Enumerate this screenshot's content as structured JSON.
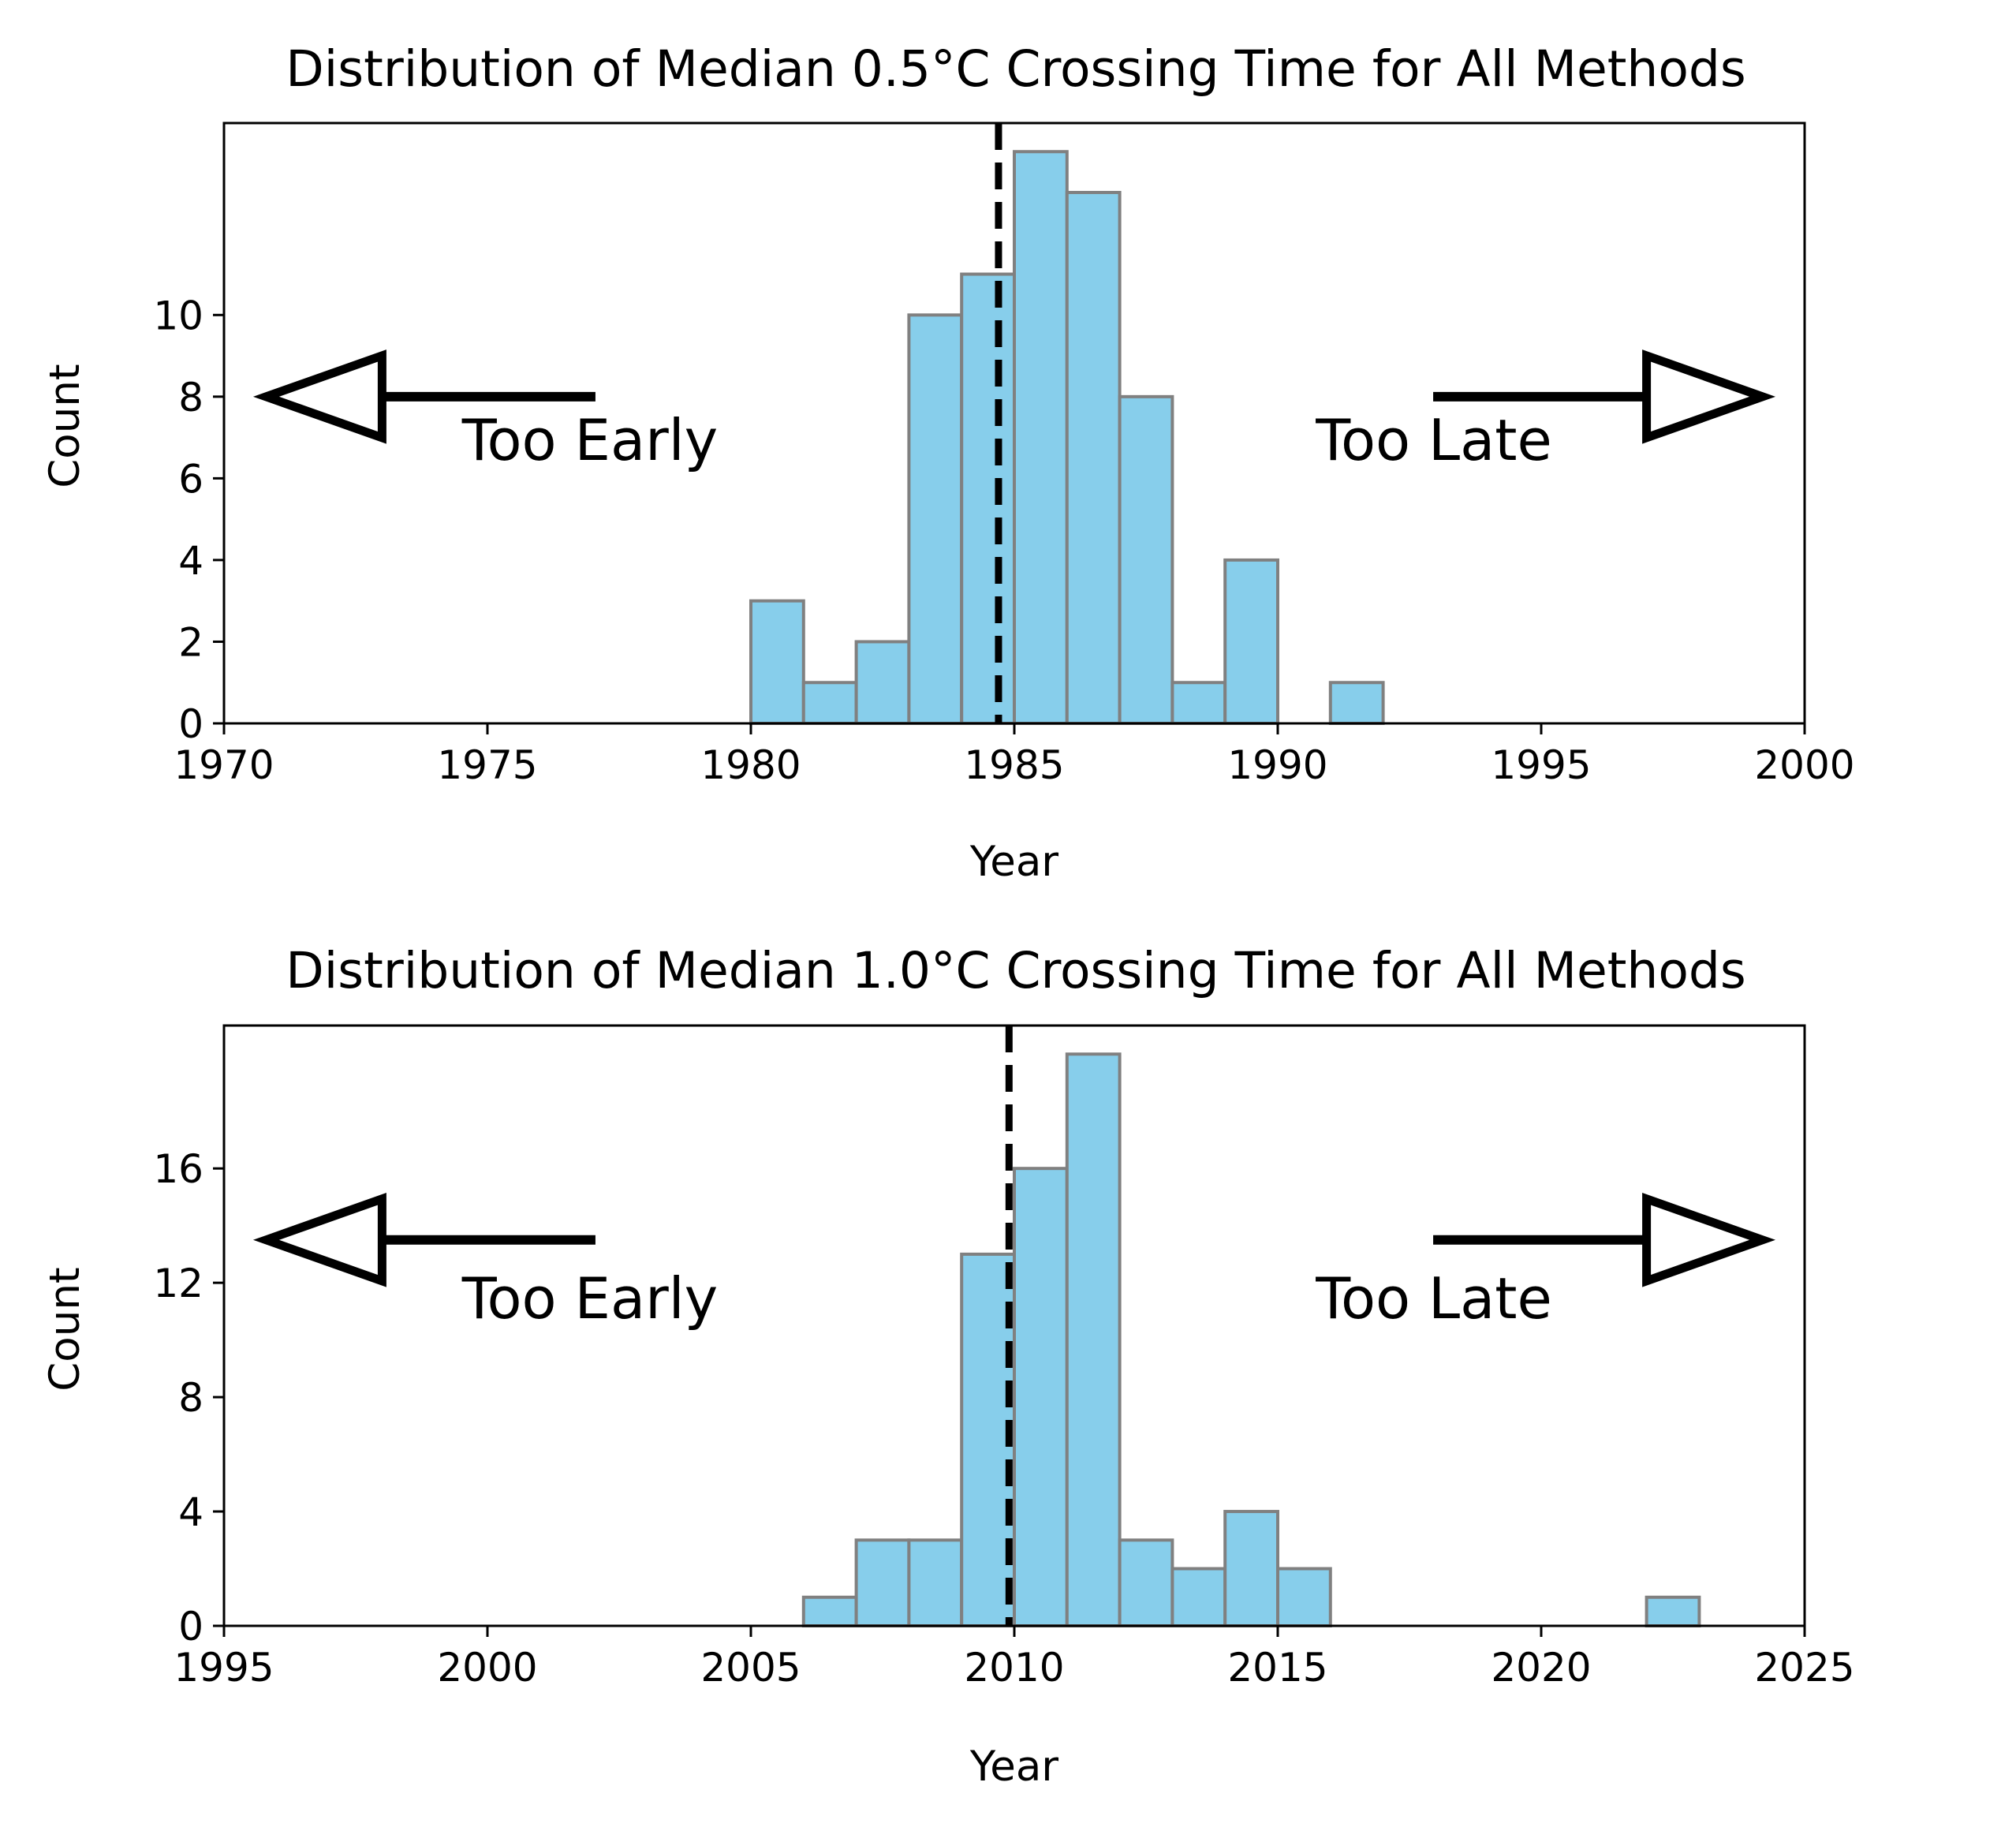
{
  "colors": {
    "bar_fill": "#87CEEB",
    "bar_edge": "#808080",
    "reference_line": "#000000",
    "arrow": "#000000"
  },
  "chart_data": [
    {
      "type": "bar",
      "title": "Distribution of Median 0.5°C Crossing Time for All Methods",
      "xlabel": "Year",
      "ylabel": "Count",
      "xlim": [
        1970,
        2000
      ],
      "ylim": [
        0,
        14.7
      ],
      "xticks": [
        1970,
        1975,
        1980,
        1985,
        1990,
        1995,
        2000
      ],
      "yticks": [
        0,
        2,
        4,
        6,
        8,
        10
      ],
      "bin_width": 1,
      "bins": [
        {
          "start": 1980,
          "count": 3
        },
        {
          "start": 1981,
          "count": 1
        },
        {
          "start": 1982,
          "count": 2
        },
        {
          "start": 1983,
          "count": 10
        },
        {
          "start": 1984,
          "count": 11
        },
        {
          "start": 1985,
          "count": 14
        },
        {
          "start": 1986,
          "count": 13
        },
        {
          "start": 1987,
          "count": 8
        },
        {
          "start": 1988,
          "count": 1
        },
        {
          "start": 1989,
          "count": 4
        },
        {
          "start": 1991,
          "count": 1
        }
      ],
      "reference_line": {
        "x": 1984.7,
        "style": "dashed"
      },
      "annotations": {
        "left_text": "Too Early",
        "right_text": "Too Late",
        "arrow_y": 8
      },
      "grid": false
    },
    {
      "type": "bar",
      "title": "Distribution of Median 1.0°C Crossing Time for All Methods",
      "xlabel": "Year",
      "ylabel": "Count",
      "xlim": [
        1995,
        2025
      ],
      "ylim": [
        0,
        21
      ],
      "xticks": [
        1995,
        2000,
        2005,
        2010,
        2015,
        2020,
        2025
      ],
      "yticks": [
        0,
        4,
        8,
        12,
        16
      ],
      "bin_width": 1,
      "bins": [
        {
          "start": 2006,
          "count": 1
        },
        {
          "start": 2007,
          "count": 3
        },
        {
          "start": 2008,
          "count": 3
        },
        {
          "start": 2009,
          "count": 13
        },
        {
          "start": 2010,
          "count": 16
        },
        {
          "start": 2011,
          "count": 20
        },
        {
          "start": 2012,
          "count": 3
        },
        {
          "start": 2013,
          "count": 2
        },
        {
          "start": 2014,
          "count": 4
        },
        {
          "start": 2015,
          "count": 2
        },
        {
          "start": 2022,
          "count": 1
        }
      ],
      "reference_line": {
        "x": 2009.9,
        "style": "dashed"
      },
      "annotations": {
        "left_text": "Too Early",
        "right_text": "Too Late",
        "arrow_y": 13.5
      },
      "grid": false
    }
  ]
}
